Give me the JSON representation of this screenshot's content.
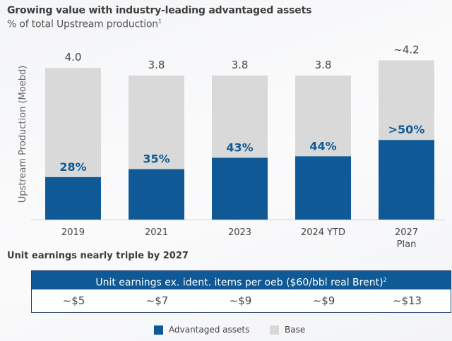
{
  "header": {
    "title": "Growing value with industry-leading advantaged assets",
    "subtitle": "% of total Upstream production",
    "subtitle_footnote": "1"
  },
  "colors": {
    "advantaged": "#0f5a96",
    "base": "#d9d9d9",
    "header_bg": "#0f5a96"
  },
  "chart_data": {
    "type": "bar",
    "stacked": true,
    "title": "Growing value with industry-leading advantaged assets",
    "subtitle": "% of total Upstream production",
    "ylabel": "Upstream Production (Moebd)",
    "xlabel": "",
    "categories": [
      "2019",
      "2021",
      "2023",
      "2024 YTD",
      "2027 Plan"
    ],
    "category_lines": [
      [
        "2019"
      ],
      [
        "2021"
      ],
      [
        "2023"
      ],
      [
        "2024 YTD"
      ],
      [
        "2027",
        "Plan"
      ]
    ],
    "totals": [
      4.0,
      3.8,
      3.8,
      3.8,
      4.2
    ],
    "total_labels": [
      "4.0",
      "3.8",
      "3.8",
      "3.8",
      "~4.2"
    ],
    "advantaged_share_pct": [
      28,
      35,
      43,
      44,
      50
    ],
    "share_labels": [
      "28%",
      "35%",
      "43%",
      "44%",
      ">50%"
    ],
    "series": [
      {
        "name": "Advantaged assets",
        "values": [
          1.12,
          1.33,
          1.63,
          1.67,
          2.1
        ]
      },
      {
        "name": "Base",
        "values": [
          2.88,
          2.47,
          2.17,
          2.13,
          2.1
        ]
      }
    ],
    "ylim": [
      0,
      4.6
    ],
    "grid": false,
    "legend_position": "bottom"
  },
  "section": {
    "title": "Unit earnings nearly triple by 2027"
  },
  "table": {
    "header": "Unit earnings ex. ident. items per oeb ($60/bbl real Brent)",
    "footnote": "2",
    "values": [
      "~$5",
      "~$7",
      "~$9",
      "~$9",
      "~$13"
    ]
  },
  "legend": [
    {
      "label": "Advantaged assets"
    },
    {
      "label": "Base"
    }
  ]
}
